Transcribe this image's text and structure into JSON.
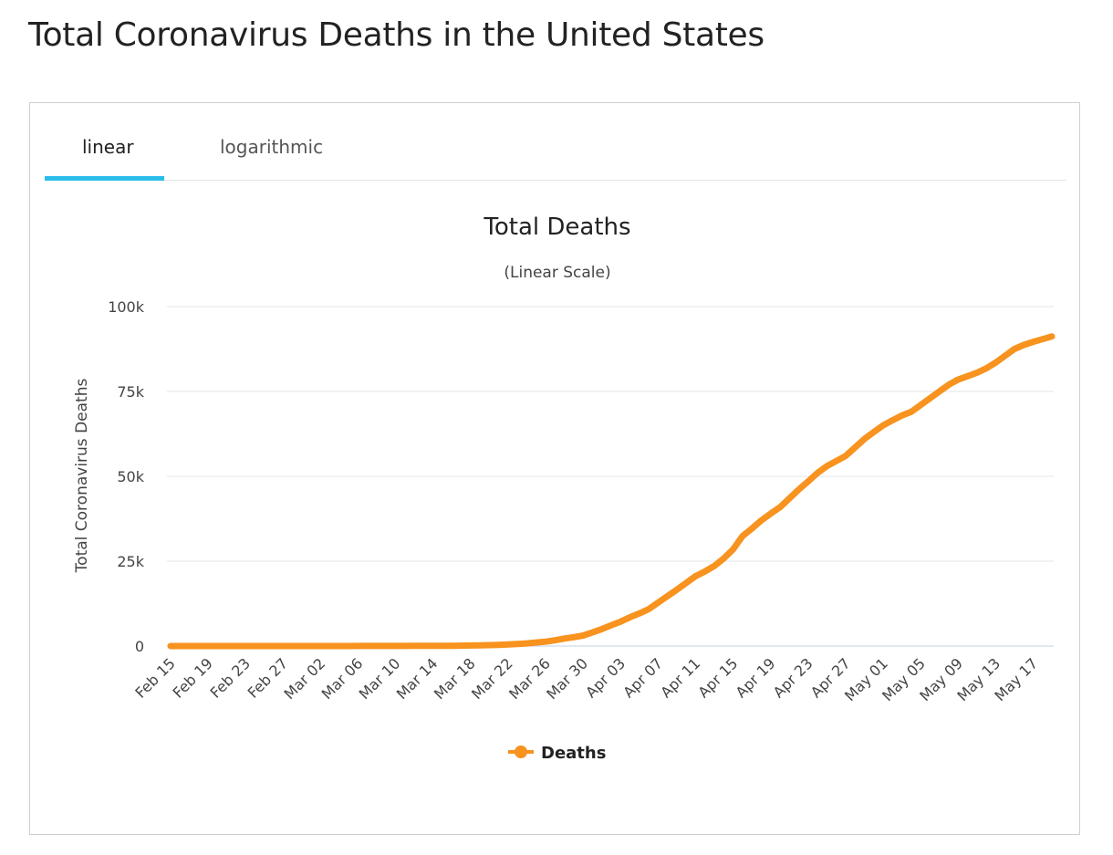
{
  "page": {
    "title": "Total Coronavirus Deaths in the United States"
  },
  "tabs": [
    {
      "label": "linear",
      "active": true
    },
    {
      "label": "logarithmic",
      "active": false
    }
  ],
  "colors": {
    "series": "#f7931e",
    "tab_active": "#2bbdea",
    "grid": "#e6e6e6",
    "baseline": "#c6d2e6"
  },
  "chart_data": {
    "type": "line",
    "title": "Total Deaths",
    "subtitle": "(Linear Scale)",
    "xlabel": "",
    "ylabel": "Total Coronavirus Deaths",
    "yscale": "linear",
    "ylim": [
      0,
      100000
    ],
    "yticks": [
      0,
      25000,
      50000,
      75000,
      100000
    ],
    "ytick_labels": [
      "0",
      "25k",
      "50k",
      "75k",
      "100k"
    ],
    "xtick_labels": [
      "Feb 15",
      "Feb 19",
      "Feb 23",
      "Feb 27",
      "Mar 02",
      "Mar 06",
      "Mar 10",
      "Mar 14",
      "Mar 18",
      "Mar 22",
      "Mar 26",
      "Mar 30",
      "Apr 03",
      "Apr 07",
      "Apr 11",
      "Apr 15",
      "Apr 19",
      "Apr 23",
      "Apr 27",
      "May 01",
      "May 05",
      "May 09",
      "May 13",
      "May 17"
    ],
    "grid": true,
    "legend": "bottom-center",
    "x": [
      "Feb 15",
      "Feb 16",
      "Feb 17",
      "Feb 18",
      "Feb 19",
      "Feb 20",
      "Feb 21",
      "Feb 22",
      "Feb 23",
      "Feb 24",
      "Feb 25",
      "Feb 26",
      "Feb 27",
      "Feb 28",
      "Feb 29",
      "Mar 01",
      "Mar 02",
      "Mar 03",
      "Mar 04",
      "Mar 05",
      "Mar 06",
      "Mar 07",
      "Mar 08",
      "Mar 09",
      "Mar 10",
      "Mar 11",
      "Mar 12",
      "Mar 13",
      "Mar 14",
      "Mar 15",
      "Mar 16",
      "Mar 17",
      "Mar 18",
      "Mar 19",
      "Mar 20",
      "Mar 21",
      "Mar 22",
      "Mar 23",
      "Mar 24",
      "Mar 25",
      "Mar 26",
      "Mar 27",
      "Mar 28",
      "Mar 29",
      "Mar 30",
      "Mar 31",
      "Apr 01",
      "Apr 02",
      "Apr 03",
      "Apr 04",
      "Apr 05",
      "Apr 06",
      "Apr 07",
      "Apr 08",
      "Apr 09",
      "Apr 10",
      "Apr 11",
      "Apr 12",
      "Apr 13",
      "Apr 14",
      "Apr 15",
      "Apr 16",
      "Apr 17",
      "Apr 18",
      "Apr 19",
      "Apr 20",
      "Apr 21",
      "Apr 22",
      "Apr 23",
      "Apr 24",
      "Apr 25",
      "Apr 26",
      "Apr 27",
      "Apr 28",
      "Apr 29",
      "Apr 30",
      "May 01",
      "May 02",
      "May 03",
      "May 04",
      "May 05",
      "May 06",
      "May 07",
      "May 08",
      "May 09",
      "May 10",
      "May 11",
      "May 12",
      "May 13",
      "May 14",
      "May 15",
      "May 16",
      "May 17",
      "May 18",
      "May 19"
    ],
    "series": [
      {
        "name": "Deaths",
        "values": [
          0,
          0,
          0,
          0,
          0,
          0,
          0,
          0,
          0,
          0,
          0,
          0,
          0,
          0,
          1,
          1,
          6,
          9,
          11,
          12,
          15,
          19,
          22,
          26,
          30,
          38,
          41,
          49,
          57,
          68,
          85,
          108,
          150,
          200,
          260,
          340,
          470,
          580,
          780,
          1050,
          1300,
          1700,
          2200,
          2600,
          3100,
          4000,
          5000,
          6100,
          7200,
          8500,
          9600,
          10900,
          12800,
          14700,
          16600,
          18600,
          20600,
          22000,
          23600,
          25800,
          28500,
          32400,
          34600,
          37000,
          39000,
          40900,
          43500,
          46100,
          48500,
          51000,
          53000,
          54500,
          56000,
          58500,
          61000,
          63000,
          65000,
          66500,
          67900,
          69000,
          71000,
          73000,
          75000,
          77000,
          78500,
          79500,
          80500,
          81800,
          83500,
          85500,
          87500,
          88700,
          89600,
          90400,
          91200
        ]
      }
    ]
  }
}
